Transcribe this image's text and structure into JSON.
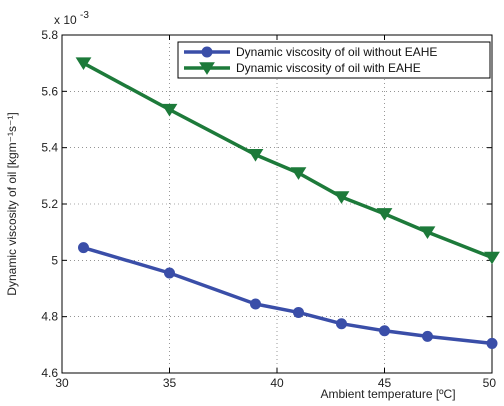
{
  "chart_data": {
    "type": "line",
    "title": "",
    "xlabel": "Ambient temperature [ºC]",
    "ylabel": "Dynamic viscosity of oil [kgm⁻¹s⁻¹]",
    "y_multiplier": "x 10",
    "y_multiplier_exponent": "-3",
    "xlim": [
      30,
      50
    ],
    "ylim": [
      4.6,
      5.8
    ],
    "xticks": [
      30,
      35,
      40,
      45,
      50
    ],
    "yticks": [
      4.6,
      4.8,
      5.0,
      5.2,
      5.4,
      5.6,
      5.8
    ],
    "xtick_labels": [
      "30",
      "35",
      "40",
      "45",
      "50"
    ],
    "ytick_labels": [
      "4.6",
      "4.8",
      "5",
      "5.2",
      "5.4",
      "5.6",
      "5.8"
    ],
    "grid": true,
    "legend_position": "top-right",
    "x": [
      31,
      35,
      39,
      41,
      43,
      45,
      47,
      50
    ],
    "series": [
      {
        "name": "Dynamic viscosity of oil without EAHE",
        "color": "#3a4ea8",
        "marker": "circle",
        "values": [
          5.045,
          4.955,
          4.845,
          4.815,
          4.775,
          4.75,
          4.73,
          4.705
        ]
      },
      {
        "name": "Dynamic viscosity of oil with EAHE",
        "color": "#1d7a3a",
        "marker": "triangle-down",
        "values": [
          5.7,
          5.535,
          5.375,
          5.31,
          5.225,
          5.165,
          5.1,
          5.01
        ]
      }
    ]
  }
}
